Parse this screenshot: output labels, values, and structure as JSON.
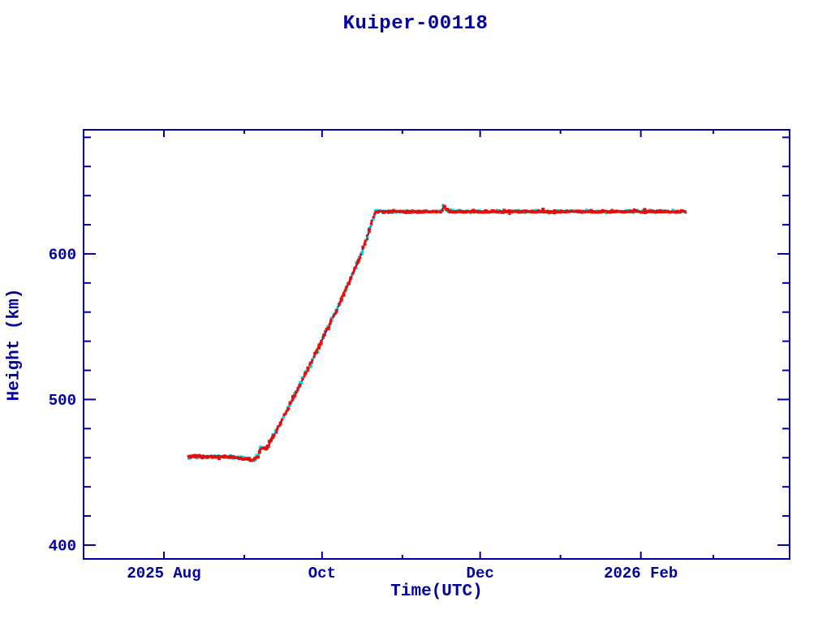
{
  "page": {
    "background": "#ffffff"
  },
  "chart_data": {
    "type": "scatter",
    "title": "Kuiper-00118",
    "xlabel": "Time(UTC)",
    "ylabel": "Height (km)",
    "grid": false,
    "legend": null,
    "axis_color": "#0000a2",
    "xlim": [
      0,
      272.4
    ],
    "ylim": [
      390.5,
      685.2
    ],
    "x_unit": "day",
    "y_unit": "km",
    "x_major_ticks": [
      {
        "value": 31,
        "label": "2025 Aug"
      },
      {
        "value": 92,
        "label": "Oct"
      },
      {
        "value": 153,
        "label": "Dec"
      },
      {
        "value": 215,
        "label": "2026 Feb"
      }
    ],
    "x_minor_ticks": [
      62,
      123,
      184,
      243
    ],
    "y_major_ticks": [
      {
        "value": 400,
        "label": "400"
      },
      {
        "value": 500,
        "label": "500"
      },
      {
        "value": 600,
        "label": "600"
      }
    ],
    "y_minor_ticks": [
      420,
      440,
      460,
      480,
      520,
      540,
      560,
      580,
      620,
      640,
      660,
      680
    ],
    "series": [
      {
        "name": "model-line",
        "type": "line",
        "color": "#000090"
      },
      {
        "name": "aux-points",
        "type": "scatter",
        "color": "#00dcdc"
      },
      {
        "name": "measured-points",
        "type": "scatter",
        "color": "#e60d0d"
      }
    ],
    "trend_anchors": [
      [
        40.5,
        460.8
      ],
      [
        49.0,
        460.8
      ],
      [
        57.0,
        460.3
      ],
      [
        63.0,
        459.3
      ],
      [
        65.3,
        458.2
      ],
      [
        66.8,
        460.2
      ],
      [
        68.0,
        464.6
      ],
      [
        68.9,
        467.0
      ],
      [
        69.9,
        465.9
      ],
      [
        71.0,
        467.3
      ],
      [
        78.0,
        491.0
      ],
      [
        88.0,
        526.0
      ],
      [
        98.0,
        563.0
      ],
      [
        105.0,
        591.0
      ],
      [
        109.0,
        609.0
      ],
      [
        112.5,
        629.0
      ],
      [
        138.0,
        629.0
      ],
      [
        139.0,
        632.6
      ],
      [
        140.0,
        631.0
      ],
      [
        141.0,
        629.0
      ],
      [
        232.3,
        629.0
      ]
    ]
  }
}
